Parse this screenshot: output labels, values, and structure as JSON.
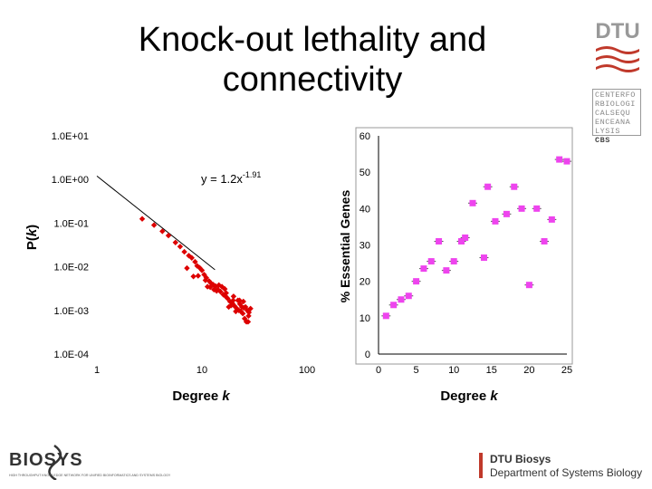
{
  "slide": {
    "title_line1": "Knock-out lethality and",
    "title_line2": "connectivity"
  },
  "logos": {
    "dtu": "DTU",
    "cbs_lines": [
      "CENTERFO",
      "RBIOLOGI",
      "CALSEQU",
      "ENCEANA",
      "LYSIS"
    ],
    "cbs_mark": "CBS",
    "biosys_left": "BIOSYS",
    "biosys_left_tagline": "HIGH THROUGHPUT KNOWLEDGE NETWORK FOR UNIFIED BIOINFORMATICS AND SYSTEMS BIOLOGY",
    "biosys_right_line1": "DTU Biosys",
    "biosys_right_line2": "Department of Systems Biology"
  },
  "colors": {
    "left_series": "#dd0000",
    "right_series": "#ee44ee",
    "fit_line": "#000000"
  },
  "chart_data": [
    {
      "type": "scatter",
      "scale": "log-log",
      "xlabel": "Degree",
      "xlabel_var": "k",
      "ylabel": "P(",
      "ylabel_var": "k",
      "ylabel_close": ")",
      "annotation_base": "y = 1.2x",
      "annotation_exp": "-1.91",
      "xlim": [
        1,
        100
      ],
      "ylim": [
        0.0001,
        10
      ],
      "x_ticks": [
        "1",
        "10",
        "100"
      ],
      "y_ticks": [
        "1.0E+01",
        "1.0E+00",
        "1.0E-01",
        "1.0E-02",
        "1.0E-03",
        "1.0E-04"
      ],
      "fit": {
        "a": 1.2,
        "b": -1.91,
        "x_range": [
          1,
          13.3
        ]
      },
      "points": [
        [
          2.7,
          0.125
        ],
        [
          3.5,
          0.09
        ],
        [
          4.2,
          0.065
        ],
        [
          4.8,
          0.052
        ],
        [
          5.6,
          0.036
        ],
        [
          6.2,
          0.029
        ],
        [
          6.8,
          0.022
        ],
        [
          7.5,
          0.018
        ],
        [
          8.0,
          0.016
        ],
        [
          8.6,
          0.013
        ],
        [
          9.0,
          0.0105
        ],
        [
          9.5,
          0.0095
        ],
        [
          10.0,
          0.0083
        ],
        [
          10.5,
          0.0066
        ],
        [
          11.0,
          0.0056
        ],
        [
          11.7,
          0.0047
        ],
        [
          12.2,
          0.0042
        ],
        [
          12.8,
          0.0039
        ],
        [
          13.5,
          0.0036
        ],
        [
          14.2,
          0.003
        ],
        [
          15.0,
          0.0027
        ],
        [
          16.0,
          0.0023
        ],
        [
          16.8,
          0.0021
        ],
        [
          17.5,
          0.0019
        ],
        [
          18.5,
          0.0016
        ],
        [
          19.5,
          0.00145
        ],
        [
          20.5,
          0.00125
        ],
        [
          21.5,
          0.0011
        ],
        [
          22.5,
          0.001
        ],
        [
          23.5,
          0.00095
        ],
        [
          24.5,
          0.00085
        ],
        [
          25.5,
          0.00065
        ],
        [
          26.5,
          0.00055
        ],
        [
          27.5,
          0.00055
        ],
        [
          9.2,
          0.0062
        ],
        [
          10.8,
          0.0049
        ],
        [
          12.0,
          0.0034
        ],
        [
          13.0,
          0.003
        ],
        [
          14.5,
          0.0038
        ],
        [
          15.5,
          0.0035
        ],
        [
          17.0,
          0.0025
        ],
        [
          18.0,
          0.0012
        ],
        [
          19.0,
          0.0013
        ],
        [
          21.0,
          0.00095
        ],
        [
          22.0,
          0.0017
        ],
        [
          23.0,
          0.0014
        ],
        [
          24.0,
          0.0012
        ],
        [
          25.0,
          0.00115
        ],
        [
          26.0,
          0.0012
        ],
        [
          27.0,
          0.001
        ],
        [
          28.0,
          0.0009
        ],
        [
          8.3,
          0.006
        ],
        [
          11.3,
          0.0035
        ],
        [
          16.5,
          0.0031
        ],
        [
          20.0,
          0.0021
        ],
        [
          22.8,
          0.0017
        ],
        [
          24.8,
          0.0016
        ],
        [
          27.8,
          0.00075
        ],
        [
          29.0,
          0.0011
        ],
        [
          7.2,
          0.0093
        ],
        [
          13.8,
          0.0028
        ],
        [
          19.8,
          0.0017
        ]
      ]
    },
    {
      "type": "scatter",
      "xlabel": "Degree",
      "xlabel_var": "k",
      "ylabel": "% Essential Genes",
      "xlim": [
        0,
        25
      ],
      "ylim": [
        0,
        60
      ],
      "x_ticks": [
        "0",
        "5",
        "10",
        "15",
        "20",
        "25"
      ],
      "y_ticks": [
        "0",
        "10",
        "20",
        "30",
        "40",
        "50",
        "60"
      ],
      "points": [
        [
          1,
          10.5
        ],
        [
          2,
          13.5
        ],
        [
          3,
          15
        ],
        [
          4,
          16
        ],
        [
          5,
          20
        ],
        [
          6,
          23.5
        ],
        [
          7,
          25.5
        ],
        [
          8,
          31
        ],
        [
          9,
          23
        ],
        [
          10,
          25.5
        ],
        [
          11,
          31
        ],
        [
          11.5,
          32
        ],
        [
          12.5,
          41.5
        ],
        [
          14,
          26.5
        ],
        [
          14.5,
          46
        ],
        [
          15.5,
          36.5
        ],
        [
          17,
          38.5
        ],
        [
          18,
          46
        ],
        [
          19,
          40
        ],
        [
          20,
          19
        ],
        [
          21,
          40
        ],
        [
          22,
          31
        ],
        [
          23,
          37
        ],
        [
          24,
          53.5
        ],
        [
          25,
          53
        ]
      ]
    }
  ]
}
